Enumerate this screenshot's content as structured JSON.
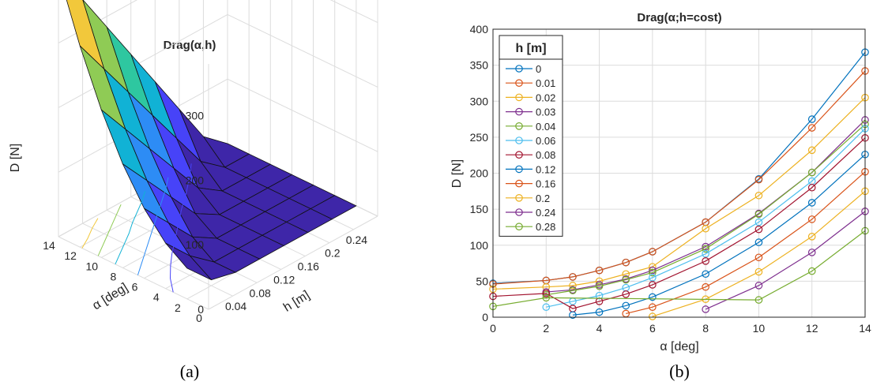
{
  "captions": {
    "left": "(a)",
    "right": "(b)"
  },
  "chart_data": [
    {
      "type": "surface",
      "title": "Drag(α,h)",
      "zlabel": "D [N]",
      "xlabel": "α [deg]",
      "ylabel": "h [m]",
      "zticks": [
        "0",
        "100",
        "200",
        "300"
      ],
      "alpha_ticks": [
        "0",
        "2",
        "4",
        "6",
        "8",
        "10",
        "12",
        "14"
      ],
      "h_ticks": [
        "0.04",
        "0.08",
        "0.12",
        "0.16",
        "0.2",
        "0.24"
      ],
      "zlim": [
        0,
        380
      ],
      "alpha_lim": [
        0,
        14
      ],
      "h_lim": [
        0,
        0.28
      ],
      "colormap": [
        "#3e26a8",
        "#4743f8",
        "#2d8cf5",
        "#11b2d5",
        "#2ec7a0",
        "#8fcb55",
        "#f2c83b",
        "#f9fb15"
      ]
    },
    {
      "type": "line",
      "title": "Drag(α;h=cost)",
      "xlabel": "α [deg]",
      "ylabel": "D [N]",
      "xlim": [
        0,
        14
      ],
      "ylim": [
        0,
        400
      ],
      "xticks": [
        0,
        2,
        4,
        6,
        8,
        10,
        12,
        14
      ],
      "yticks": [
        0,
        50,
        100,
        150,
        200,
        250,
        300,
        350,
        400
      ],
      "grid": true,
      "legend_title": "h [m]",
      "legend_position": "top-left",
      "x": [
        0,
        2,
        3,
        4,
        5,
        6,
        8,
        10,
        12,
        14
      ],
      "series": [
        {
          "name": "0",
          "color": "#0072bd",
          "values": [
            47,
            51,
            56,
            65,
            76,
            91,
            132,
            192,
            275,
            368
          ]
        },
        {
          "name": "0.01",
          "color": "#d95319",
          "values": [
            46,
            51,
            56,
            65,
            76,
            91,
            132,
            191,
            263,
            342
          ]
        },
        {
          "name": "0.02",
          "color": "#edb120",
          "values": [
            39,
            42,
            44,
            50,
            60,
            70,
            123,
            169,
            232,
            305
          ]
        },
        {
          "name": "0.03",
          "color": "#7e2f8e",
          "values": [
            null,
            35,
            38,
            45,
            53,
            65,
            98,
            144,
            201,
            274
          ]
        },
        {
          "name": "0.04",
          "color": "#77ac30",
          "values": [
            null,
            31,
            37,
            43,
            52,
            62,
            95,
            143,
            201,
            268
          ]
        },
        {
          "name": "0.06",
          "color": "#4dbeee",
          "values": [
            null,
            14,
            22,
            30,
            41,
            55,
            88,
            132,
            189,
            262
          ]
        },
        {
          "name": "0.08",
          "color": "#a2142f",
          "values": [
            29,
            33,
            12,
            22,
            32,
            45,
            78,
            122,
            180,
            249
          ]
        },
        {
          "name": "0.12",
          "color": "#0072bd",
          "values": [
            null,
            null,
            3,
            7,
            16,
            28,
            60,
            104,
            159,
            226
          ]
        },
        {
          "name": "0.16",
          "color": "#d95319",
          "values": [
            null,
            null,
            null,
            null,
            5,
            14,
            42,
            83,
            136,
            202
          ]
        },
        {
          "name": "0.2",
          "color": "#edb120",
          "values": [
            null,
            null,
            null,
            null,
            null,
            1,
            25,
            63,
            112,
            175
          ]
        },
        {
          "name": "0.24",
          "color": "#7e2f8e",
          "values": [
            null,
            null,
            null,
            null,
            null,
            null,
            11,
            44,
            90,
            147
          ]
        },
        {
          "name": "0.28",
          "color": "#77ac30",
          "values": [
            15,
            27,
            null,
            null,
            null,
            null,
            null,
            24,
            64,
            120
          ]
        }
      ]
    }
  ]
}
